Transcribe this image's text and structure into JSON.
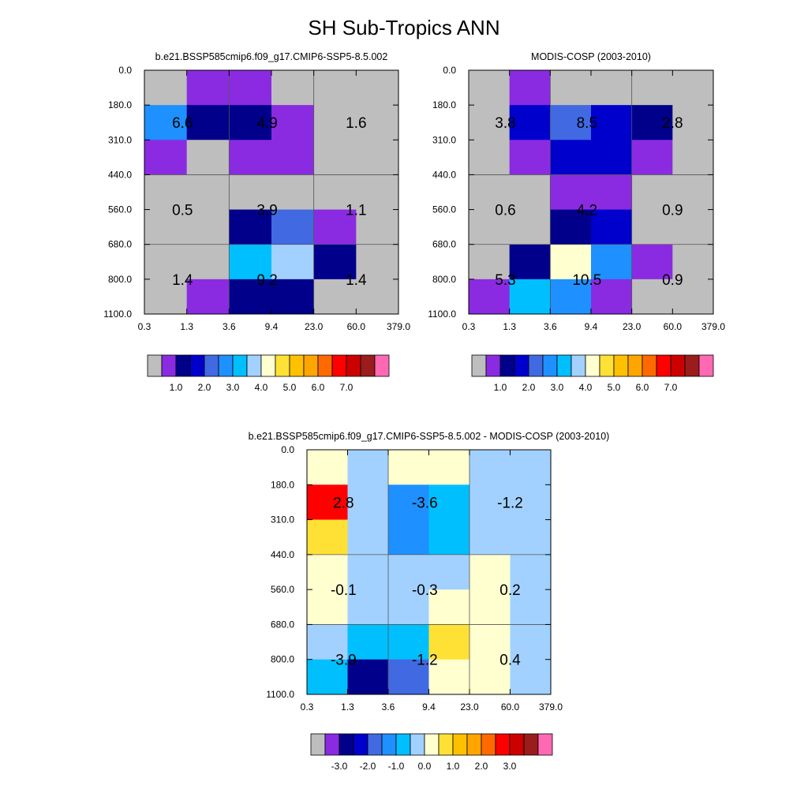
{
  "figure": {
    "title": "SH Sub-Tropics ANN"
  },
  "palettes": {
    "main": [
      "#bebebe",
      "#8a2be2",
      "#00008b",
      "#0000cd",
      "#4169e1",
      "#1e90ff",
      "#00bfff",
      "#a2d1ff",
      "#ffffd0",
      "#ffe135",
      "#ffc000",
      "#ffa500",
      "#ff6a00",
      "#ff0000",
      "#cd0000",
      "#9a1c1c",
      "#ff69b4"
    ],
    "diff": [
      "#bebebe",
      "#8a2be2",
      "#00008b",
      "#0000cd",
      "#4169e1",
      "#1e90ff",
      "#00bfff",
      "#a2d1ff",
      "#ffffd0",
      "#ffe135",
      "#ffc000",
      "#ffa500",
      "#ff6a00",
      "#ff0000",
      "#cd0000",
      "#9a1c1c",
      "#ff69b4"
    ]
  },
  "chart_data": [
    {
      "type": "heatmap",
      "title": "b.e21.BSSP585cmip6.f09_g17.CMIP6-SSP5-8.5.002",
      "x_ticks": [
        "0.3",
        "1.3",
        "3.6",
        "9.4",
        "23.0",
        "60.0",
        "379.0"
      ],
      "y_ticks": [
        "0.0",
        "180.0",
        "310.0",
        "440.0",
        "560.0",
        "680.0",
        "800.0",
        "1100.0"
      ],
      "cells": [
        [
          0,
          1,
          1,
          0,
          0,
          0
        ],
        [
          5,
          2,
          2,
          1,
          0,
          0
        ],
        [
          1,
          0,
          1,
          1,
          0,
          0
        ],
        [
          0,
          0,
          0,
          0,
          0,
          0
        ],
        [
          0,
          0,
          2,
          4,
          1,
          0
        ],
        [
          0,
          0,
          6,
          7,
          2,
          0
        ],
        [
          0,
          1,
          2,
          2,
          0,
          0
        ]
      ],
      "annotations": [
        {
          "text": "6.6",
          "col": 0.9,
          "row": 1.5
        },
        {
          "text": "4.9",
          "col": 2.9,
          "row": 1.5
        },
        {
          "text": "1.6",
          "col": 5.0,
          "row": 1.5
        },
        {
          "text": "0.5",
          "col": 0.9,
          "row": 4.0
        },
        {
          "text": "3.9",
          "col": 2.9,
          "row": 4.0
        },
        {
          "text": "1.1",
          "col": 5.0,
          "row": 4.0
        },
        {
          "text": "1.4",
          "col": 0.9,
          "row": 6.0
        },
        {
          "text": "9.2",
          "col": 2.9,
          "row": 6.0
        },
        {
          "text": "1.4",
          "col": 5.0,
          "row": 6.0
        }
      ],
      "colorbar": {
        "labels": [
          "1.0",
          "2.0",
          "3.0",
          "4.0",
          "5.0",
          "6.0",
          "7.0"
        ],
        "palette": "main"
      }
    },
    {
      "type": "heatmap",
      "title": "MODIS-COSP (2003-2010)",
      "x_ticks": [
        "0.3",
        "1.3",
        "3.6",
        "9.4",
        "23.0",
        "60.0",
        "379.0"
      ],
      "y_ticks": [
        "0.0",
        "180.0",
        "310.0",
        "440.0",
        "560.0",
        "680.0",
        "800.0",
        "1100.0"
      ],
      "cells": [
        [
          0,
          1,
          0,
          0,
          0,
          0
        ],
        [
          0,
          3,
          4,
          3,
          2,
          0
        ],
        [
          0,
          1,
          3,
          3,
          1,
          0
        ],
        [
          0,
          0,
          1,
          1,
          0,
          0
        ],
        [
          0,
          0,
          2,
          3,
          0,
          0
        ],
        [
          0,
          2,
          8,
          5,
          1,
          0
        ],
        [
          1,
          6,
          5,
          1,
          0,
          0
        ]
      ],
      "annotations": [
        {
          "text": "3.8",
          "col": 0.9,
          "row": 1.5
        },
        {
          "text": "8.5",
          "col": 2.9,
          "row": 1.5
        },
        {
          "text": "2.8",
          "col": 5.0,
          "row": 1.5
        },
        {
          "text": "0.6",
          "col": 0.9,
          "row": 4.0
        },
        {
          "text": "4.2",
          "col": 2.9,
          "row": 4.0
        },
        {
          "text": "0.9",
          "col": 5.0,
          "row": 4.0
        },
        {
          "text": "5.3",
          "col": 0.9,
          "row": 6.0
        },
        {
          "text": "10.5",
          "col": 2.9,
          "row": 6.0
        },
        {
          "text": "0.9",
          "col": 5.0,
          "row": 6.0
        }
      ],
      "colorbar": {
        "labels": [
          "1.0",
          "2.0",
          "3.0",
          "4.0",
          "5.0",
          "6.0",
          "7.0"
        ],
        "palette": "main"
      }
    },
    {
      "type": "heatmap",
      "title": "b.e21.BSSP585cmip6.f09_g17.CMIP6-SSP5-8.5.002 - MODIS-COSP (2003-2010)",
      "x_ticks": [
        "0.3",
        "1.3",
        "3.6",
        "9.4",
        "23.0",
        "60.0",
        "379.0"
      ],
      "y_ticks": [
        "0.0",
        "180.0",
        "310.0",
        "440.0",
        "560.0",
        "680.0",
        "800.0",
        "1100.0"
      ],
      "cells": [
        [
          8,
          7,
          8,
          8,
          7,
          7
        ],
        [
          13,
          7,
          5,
          6,
          7,
          7
        ],
        [
          9,
          7,
          5,
          6,
          7,
          7
        ],
        [
          8,
          7,
          7,
          7,
          8,
          7
        ],
        [
          8,
          7,
          7,
          8,
          8,
          7
        ],
        [
          7,
          6,
          6,
          9,
          8,
          7
        ],
        [
          6,
          2,
          4,
          8,
          8,
          7
        ]
      ],
      "annotations": [
        {
          "text": "2.8",
          "col": 0.9,
          "row": 1.5
        },
        {
          "text": "-3.6",
          "col": 2.9,
          "row": 1.5
        },
        {
          "text": "-1.2",
          "col": 5.0,
          "row": 1.5
        },
        {
          "text": "-0.1",
          "col": 0.9,
          "row": 4.0
        },
        {
          "text": "-0.3",
          "col": 2.9,
          "row": 4.0
        },
        {
          "text": "0.2",
          "col": 5.0,
          "row": 4.0
        },
        {
          "text": "-3.9",
          "col": 0.9,
          "row": 6.0
        },
        {
          "text": "-1.2",
          "col": 2.9,
          "row": 6.0
        },
        {
          "text": "0.4",
          "col": 5.0,
          "row": 6.0
        }
      ],
      "colorbar": {
        "labels": [
          "-3.0",
          "-2.0",
          "-1.0",
          "0.0",
          "1.0",
          "2.0",
          "3.0"
        ],
        "palette": "diff"
      }
    }
  ]
}
